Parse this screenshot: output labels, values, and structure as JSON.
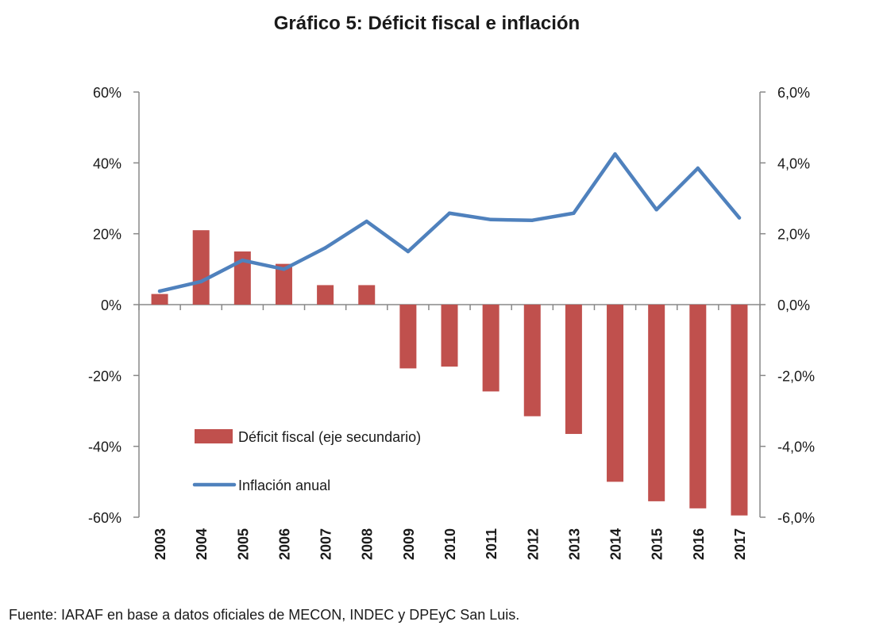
{
  "chart_data": {
    "type": "bar+line",
    "title": "Gráfico 5: Déficit fiscal e inflación",
    "categories": [
      "2003",
      "2004",
      "2005",
      "2006",
      "2007",
      "2008",
      "2009",
      "2010",
      "2011",
      "2012",
      "2013",
      "2014",
      "2015",
      "2016",
      "2017"
    ],
    "series": [
      {
        "name": "Déficit fiscal (eje secundario)",
        "type": "bar",
        "axis": "secondary",
        "color": "#c0504d",
        "values": [
          0.3,
          2.1,
          1.5,
          1.15,
          0.55,
          0.55,
          -1.8,
          -1.75,
          -2.45,
          -3.15,
          -3.65,
          -5.0,
          -5.55,
          -5.75,
          -5.95
        ]
      },
      {
        "name": "Inflación anual",
        "type": "line",
        "axis": "primary",
        "color": "#4f81bd",
        "values": [
          3.8,
          6.5,
          12.5,
          10.0,
          16.0,
          23.5,
          15.0,
          25.8,
          24.0,
          23.8,
          25.8,
          42.5,
          26.8,
          38.5,
          24.5
        ]
      }
    ],
    "y_primary": {
      "min": -60,
      "max": 60,
      "ticks": [
        "-60%",
        "-40%",
        "-20%",
        "0%",
        "20%",
        "40%",
        "60%"
      ]
    },
    "y_secondary": {
      "min": -6,
      "max": 6,
      "ticks": [
        "-6,0%",
        "-4,0%",
        "-2,0%",
        "0,0%",
        "2,0%",
        "4,0%",
        "6,0%"
      ]
    },
    "legend": {
      "placement": "lower-left"
    }
  },
  "source": "Fuente: IARAF en base a datos oficiales de MECON, INDEC y DPEyC San Luis."
}
